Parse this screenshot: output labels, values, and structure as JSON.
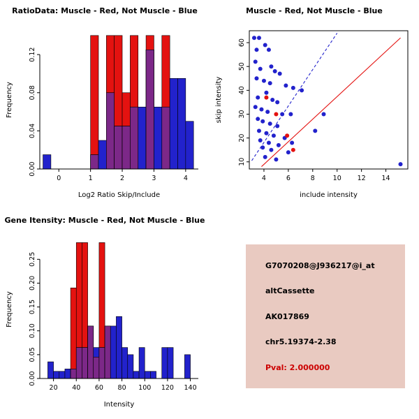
{
  "figure": {
    "background": "#ffffff"
  },
  "chart_data": [
    {
      "type": "histogram",
      "title": "RatioData: Muscle - Red, Not Muscle - Blue",
      "xlabel": "Log2 Ratio Skip/Include",
      "ylabel": "Frequency",
      "xlim": [
        -0.6,
        4.4
      ],
      "ylim": [
        0,
        0.145
      ],
      "xticks": [
        0,
        1,
        2,
        3,
        4
      ],
      "xtick_labels": [
        "0",
        "1",
        "2",
        "3",
        "4"
      ],
      "yticks": [
        0,
        0.04,
        0.08,
        0.12
      ],
      "ytick_labels": [
        "0.00",
        "0.04",
        "0.08",
        "0.12"
      ],
      "bins_start": -0.5,
      "bin_width": 0.25,
      "overlap_color": "#7c2888",
      "grid": false,
      "series": [
        {
          "name": "Muscle",
          "color": "#e41210",
          "values": [
            0,
            0,
            0,
            0,
            0,
            0,
            0.14,
            0,
            0.14,
            0.14,
            0.08,
            0.14,
            0,
            0.14,
            0,
            0.14,
            0,
            0,
            0
          ]
        },
        {
          "name": "Not Muscle",
          "color": "#2222cc",
          "values": [
            0.015,
            0,
            0,
            0,
            0,
            0,
            0.015,
            0.03,
            0.08,
            0.045,
            0.045,
            0.065,
            0.065,
            0.125,
            0.065,
            0.065,
            0.095,
            0.095,
            0.05
          ]
        }
      ]
    },
    {
      "type": "scatter",
      "title": "Muscle - Red, Not Muscle - Blue",
      "xlabel": "include intensity",
      "ylabel": "skip intensity",
      "xlim": [
        2.8,
        15.8
      ],
      "ylim": [
        7,
        65
      ],
      "xticks": [
        4,
        6,
        8,
        10,
        12,
        14
      ],
      "xtick_labels": [
        "4",
        "6",
        "8",
        "10",
        "12",
        "14"
      ],
      "yticks": [
        10,
        20,
        30,
        40,
        50,
        60
      ],
      "ytick_labels": [
        "10",
        "20",
        "30",
        "40",
        "50",
        "60"
      ],
      "grid": false,
      "series": [
        {
          "name": "Not Muscle",
          "color": "#2222cc",
          "points": [
            [
              3.2,
              62
            ],
            [
              3.6,
              62
            ],
            [
              4.1,
              59
            ],
            [
              3.4,
              57
            ],
            [
              4.4,
              57
            ],
            [
              3.3,
              52
            ],
            [
              4.6,
              50
            ],
            [
              3.7,
              49
            ],
            [
              4.9,
              48
            ],
            [
              5.3,
              47
            ],
            [
              3.4,
              45
            ],
            [
              4.0,
              44
            ],
            [
              4.5,
              43
            ],
            [
              5.8,
              42
            ],
            [
              6.4,
              41
            ],
            [
              7.1,
              40
            ],
            [
              4.2,
              39
            ],
            [
              3.5,
              37
            ],
            [
              4.7,
              36
            ],
            [
              5.1,
              35
            ],
            [
              3.3,
              33
            ],
            [
              3.8,
              32
            ],
            [
              4.3,
              31
            ],
            [
              5.5,
              30
            ],
            [
              6.2,
              30
            ],
            [
              8.9,
              30
            ],
            [
              3.5,
              28
            ],
            [
              3.9,
              27
            ],
            [
              4.5,
              26
            ],
            [
              5.1,
              25
            ],
            [
              3.6,
              23
            ],
            [
              8.2,
              23
            ],
            [
              4.2,
              22
            ],
            [
              4.8,
              21
            ],
            [
              5.7,
              20
            ],
            [
              3.7,
              19
            ],
            [
              4.4,
              18
            ],
            [
              6.3,
              18
            ],
            [
              5.2,
              17
            ],
            [
              3.9,
              16
            ],
            [
              4.6,
              15
            ],
            [
              6.0,
              14
            ],
            [
              4.1,
              12
            ],
            [
              5.0,
              11
            ],
            [
              15.2,
              9
            ]
          ]
        },
        {
          "name": "Muscle",
          "color": "#e41210",
          "points": [
            [
              4.2,
              37
            ],
            [
              5.0,
              30
            ],
            [
              5.9,
              21
            ],
            [
              6.4,
              15
            ]
          ]
        }
      ],
      "lines": [
        {
          "name": "not-muscle-fit",
          "color": "#2222cc",
          "dashed": true,
          "from": [
            3.0,
            10.5
          ],
          "to": [
            10.0,
            64
          ]
        },
        {
          "name": "muscle-fit",
          "color": "#e41210",
          "dashed": false,
          "from": [
            3.8,
            8
          ],
          "to": [
            15.2,
            62
          ]
        }
      ]
    },
    {
      "type": "histogram",
      "title": "Gene Itensity: Muscle - Red, Not Muscle - Blue",
      "xlabel": "Intensity",
      "ylabel": "Frequency",
      "xlim": [
        8,
        147
      ],
      "ylim": [
        0,
        0.29
      ],
      "xticks": [
        20,
        40,
        60,
        80,
        100,
        120,
        140
      ],
      "xtick_labels": [
        "20",
        "40",
        "60",
        "80",
        "100",
        "120",
        "140"
      ],
      "yticks": [
        0,
        0.05,
        0.1,
        0.15,
        0.2,
        0.25
      ],
      "ytick_labels": [
        "0.00",
        "0.05",
        "0.10",
        "0.15",
        "0.20",
        "0.25"
      ],
      "bins_start": 15,
      "bin_width": 5,
      "overlap_color": "#7c2888",
      "grid": false,
      "series": [
        {
          "name": "Muscle",
          "color": "#e41210",
          "values": [
            0,
            0,
            0,
            0,
            0.19,
            0.285,
            0.285,
            0.11,
            0.045,
            0.285,
            0.11,
            0,
            0,
            0,
            0,
            0,
            0,
            0,
            0,
            0,
            0,
            0,
            0,
            0,
            0
          ]
        },
        {
          "name": "Not Muscle",
          "color": "#2222cc",
          "values": [
            0.035,
            0.015,
            0.015,
            0.02,
            0.02,
            0.065,
            0.065,
            0.11,
            0.065,
            0.065,
            0.11,
            0.11,
            0.13,
            0.065,
            0.05,
            0.015,
            0.065,
            0.015,
            0.015,
            0,
            0.065,
            0.065,
            0,
            0,
            0.05
          ]
        }
      ]
    }
  ],
  "info_box": {
    "background": "#e9cac1",
    "lines": [
      {
        "text": "G7070208@J936217@i_at",
        "color": "#000000"
      },
      {
        "text": "altCassette",
        "color": "#000000"
      },
      {
        "text": "AK017869",
        "color": "#000000"
      },
      {
        "text": "chr5.19374-2.38",
        "color": "#000000"
      },
      {
        "text": "Pval: 2.000000",
        "color": "#cc0000"
      }
    ]
  }
}
